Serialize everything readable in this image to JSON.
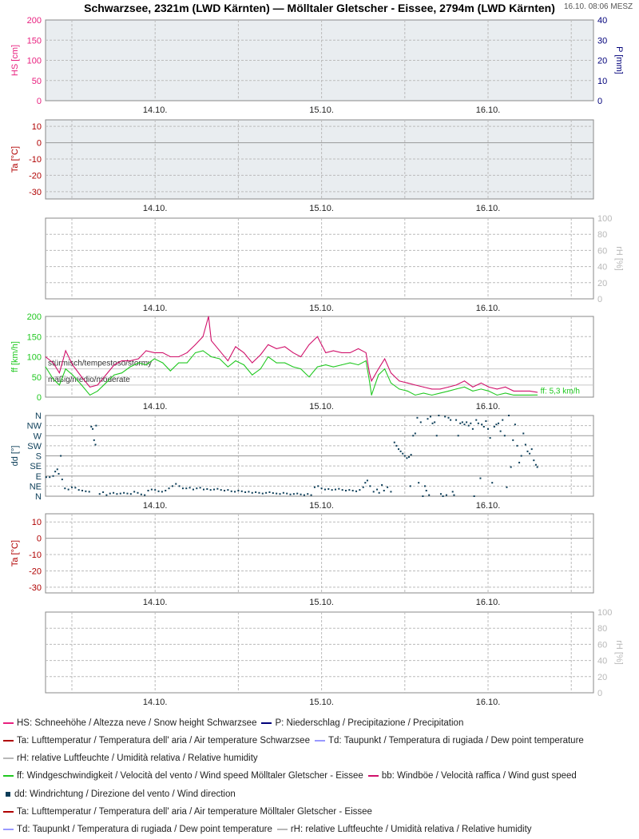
{
  "title": "Schwarzsee, 2321m (LWD Kärnten) — Mölltaler Gletscher - Eissee, 2794m (LWD Kärnten)",
  "timestamp": "16.10. 08:06 MESZ",
  "colors": {
    "hs": "#e8207f",
    "p": "#00007a",
    "ta": "#b00000",
    "rh": "#b8b8b8",
    "ff": "#20c820",
    "bb": "#d0106a",
    "dd": "#0b3d58",
    "td": "#9999ff"
  },
  "chart_data": [
    {
      "type": "line",
      "id": "hs-p",
      "xlim": [
        8.2,
        87.2
      ],
      "x_ticks": [
        24,
        48,
        72
      ],
      "x_tick_labels": [
        "14.10.",
        "15.10.",
        "16.10."
      ],
      "ylabel_left": "HS [cm]",
      "ylim_left": [
        0,
        200
      ],
      "yticks_left": [
        "0",
        "50",
        "100",
        "150",
        "200"
      ],
      "ylabel_right": "P [mm]",
      "ylim_right": [
        0,
        40
      ],
      "yticks_right": [
        "0",
        "10",
        "20",
        "30",
        "40"
      ],
      "series": []
    },
    {
      "type": "line",
      "id": "ta-1",
      "xlim": [
        8.2,
        87.2
      ],
      "x_tick_labels": [
        "14.10.",
        "15.10.",
        "16.10."
      ],
      "ylabel_left": "Ta [°C]",
      "ylim_left": [
        -34.5,
        14
      ],
      "yticks_left": [
        "10",
        "0",
        "-10",
        "-20",
        "-30"
      ],
      "series": []
    },
    {
      "type": "line",
      "id": "rh-1",
      "xlim": [
        8.2,
        87.2
      ],
      "x_tick_labels": [
        "14.10.",
        "15.10.",
        "16.10."
      ],
      "ylabel_right": "rH [%]",
      "ylim_right": [
        0,
        100
      ],
      "yticks_right": [
        "0",
        "20",
        "40",
        "60",
        "80",
        "100"
      ],
      "series": []
    },
    {
      "type": "line",
      "id": "wind",
      "xlim": [
        8.2,
        87.2
      ],
      "x_tick_labels": [
        "14.10.",
        "15.10.",
        "16.10."
      ],
      "ylabel_left": "ff [km/h]",
      "ylim_left": [
        0,
        200
      ],
      "yticks_left": [
        "0",
        "50",
        "100",
        "150",
        "200"
      ],
      "thresholds": [
        {
          "value": 70,
          "label": "stürmisch/tempestoso/stormy"
        },
        {
          "value": 30,
          "label": "mäßig/medio/moderate"
        }
      ],
      "last_value_label": "ff: 5,3 km/h",
      "x": [
        8.2,
        9.3,
        10.2,
        11.1,
        12.1,
        13.4,
        14.6,
        15.7,
        16.9,
        18.1,
        19.2,
        20.4,
        21.6,
        22.7,
        23.9,
        25.1,
        26.2,
        27.4,
        28.6,
        29.8,
        30.9,
        31.7,
        32.1,
        33.3,
        34.5,
        35.6,
        36.8,
        38.0,
        39.2,
        40.3,
        41.5,
        42.7,
        43.9,
        45.0,
        46.2,
        47.4,
        48.6,
        49.7,
        50.9,
        52.1,
        53.3,
        54.4,
        54.9,
        55.2,
        56.2,
        57.1,
        58.0,
        59.2,
        60.4,
        61.5,
        62.7,
        63.9,
        65.1,
        66.3,
        67.4,
        68.6,
        69.8,
        71.0,
        72.1,
        73.3,
        74.5,
        75.7,
        76.9,
        78.0,
        79.1
      ],
      "series": [
        {
          "name": "ff",
          "values": [
            75,
            45,
            30,
            70,
            55,
            30,
            5,
            15,
            35,
            55,
            60,
            75,
            85,
            80,
            95,
            85,
            65,
            85,
            85,
            110,
            115,
            105,
            100,
            95,
            75,
            90,
            80,
            55,
            70,
            100,
            85,
            85,
            75,
            70,
            50,
            75,
            80,
            75,
            80,
            85,
            80,
            90,
            40,
            5,
            55,
            70,
            35,
            20,
            15,
            5,
            10,
            5,
            10,
            15,
            20,
            25,
            15,
            20,
            15,
            5,
            10,
            5,
            5,
            5,
            5.3
          ]
        },
        {
          "name": "bb",
          "values": [
            100,
            85,
            60,
            115,
            80,
            50,
            25,
            30,
            55,
            80,
            90,
            90,
            95,
            115,
            110,
            110,
            100,
            100,
            110,
            130,
            150,
            200,
            140,
            115,
            90,
            125,
            110,
            85,
            105,
            130,
            120,
            125,
            110,
            100,
            130,
            150,
            110,
            115,
            110,
            110,
            120,
            110,
            60,
            40,
            70,
            95,
            60,
            40,
            35,
            30,
            25,
            20,
            20,
            25,
            30,
            40,
            25,
            35,
            25,
            20,
            25,
            15,
            15,
            15,
            12
          ]
        }
      ]
    },
    {
      "type": "scatter",
      "id": "dd",
      "xlim": [
        8.2,
        87.2
      ],
      "x_tick_labels": [
        "14.10.",
        "15.10.",
        "16.10."
      ],
      "ylabel_left": "dd [°]",
      "ylim_left": [
        0,
        360
      ],
      "yticks_left": [
        "N",
        "NE",
        "E",
        "SE",
        "S",
        "SW",
        "W",
        "NW",
        "N"
      ],
      "points": [
        [
          8.3,
          85
        ],
        [
          8.8,
          85
        ],
        [
          9.3,
          90
        ],
        [
          9.6,
          110
        ],
        [
          9.9,
          120
        ],
        [
          10.1,
          100
        ],
        [
          10.4,
          180
        ],
        [
          10.6,
          75
        ],
        [
          11.0,
          35
        ],
        [
          11.5,
          30
        ],
        [
          12.0,
          40
        ],
        [
          12.5,
          38
        ],
        [
          13.0,
          28
        ],
        [
          13.5,
          25
        ],
        [
          14.0,
          22
        ],
        [
          14.5,
          20
        ],
        [
          14.8,
          310
        ],
        [
          15.0,
          300
        ],
        [
          15.2,
          250
        ],
        [
          15.4,
          230
        ],
        [
          15.5,
          315
        ],
        [
          16.0,
          10
        ],
        [
          16.5,
          18
        ],
        [
          17,
          5
        ],
        [
          17.5,
          12
        ],
        [
          18,
          15
        ],
        [
          18.5,
          10
        ],
        [
          19,
          12
        ],
        [
          19.5,
          15
        ],
        [
          20,
          12
        ],
        [
          20.5,
          10
        ],
        [
          21,
          20
        ],
        [
          21.5,
          15
        ],
        [
          22,
          8
        ],
        [
          22.5,
          5
        ],
        [
          23,
          25
        ],
        [
          23.5,
          30
        ],
        [
          24,
          28
        ],
        [
          24.5,
          22
        ],
        [
          25,
          20
        ],
        [
          25.5,
          25
        ],
        [
          26,
          35
        ],
        [
          26.5,
          45
        ],
        [
          27,
          55
        ],
        [
          27.5,
          45
        ],
        [
          28,
          35
        ],
        [
          28.5,
          35
        ],
        [
          29,
          38
        ],
        [
          29.5,
          30
        ],
        [
          30,
          35
        ],
        [
          30.5,
          38
        ],
        [
          31,
          30
        ],
        [
          31.5,
          32
        ],
        [
          32,
          28
        ],
        [
          32.5,
          30
        ],
        [
          33,
          33
        ],
        [
          33.5,
          28
        ],
        [
          34,
          25
        ],
        [
          34.5,
          28
        ],
        [
          35,
          22
        ],
        [
          35.5,
          20
        ],
        [
          36,
          25
        ],
        [
          36.5,
          22
        ],
        [
          37,
          18
        ],
        [
          37.5,
          20
        ],
        [
          38,
          15
        ],
        [
          38.5,
          18
        ],
        [
          39,
          15
        ],
        [
          39.5,
          12
        ],
        [
          40,
          15
        ],
        [
          40.5,
          18
        ],
        [
          41,
          14
        ],
        [
          41.5,
          12
        ],
        [
          42,
          10
        ],
        [
          42.5,
          15
        ],
        [
          43,
          12
        ],
        [
          43.5,
          8
        ],
        [
          44,
          10
        ],
        [
          44.5,
          12
        ],
        [
          45,
          8
        ],
        [
          45.5,
          5
        ],
        [
          46,
          10
        ],
        [
          46.5,
          5
        ],
        [
          47,
          40
        ],
        [
          47.5,
          45
        ],
        [
          48,
          35
        ],
        [
          48.5,
          30
        ],
        [
          49,
          32
        ],
        [
          49.5,
          28
        ],
        [
          50,
          30
        ],
        [
          50.5,
          33
        ],
        [
          51,
          28
        ],
        [
          51.5,
          25
        ],
        [
          52,
          28
        ],
        [
          52.5,
          25
        ],
        [
          53,
          22
        ],
        [
          53.5,
          28
        ],
        [
          54,
          40
        ],
        [
          54.3,
          60
        ],
        [
          54.6,
          70
        ],
        [
          55,
          45
        ],
        [
          55.5,
          20
        ],
        [
          56,
          30
        ],
        [
          56.3,
          15
        ],
        [
          56.7,
          50
        ],
        [
          57,
          25
        ],
        [
          57.5,
          40
        ],
        [
          58,
          20
        ],
        [
          58.5,
          240
        ],
        [
          58.8,
          225
        ],
        [
          59.1,
          210
        ],
        [
          59.4,
          200
        ],
        [
          59.7,
          190
        ],
        [
          60,
          180
        ],
        [
          60.3,
          170
        ],
        [
          60.6,
          175
        ],
        [
          60.9,
          185
        ],
        [
          60.8,
          45
        ],
        [
          61.2,
          270
        ],
        [
          61.5,
          280
        ],
        [
          61.8,
          350
        ],
        [
          62,
          60
        ],
        [
          62.3,
          330
        ],
        [
          62.6,
          0
        ],
        [
          62.9,
          45
        ],
        [
          63.1,
          25
        ],
        [
          63.3,
          345
        ],
        [
          63.5,
          5
        ],
        [
          63.7,
          355
        ],
        [
          64,
          325
        ],
        [
          64.3,
          330
        ],
        [
          64.6,
          270
        ],
        [
          64.9,
          360
        ],
        [
          65.2,
          10
        ],
        [
          65.5,
          0
        ],
        [
          65.8,
          355
        ],
        [
          66,
          5
        ],
        [
          66.3,
          350
        ],
        [
          66.6,
          340
        ],
        [
          66.9,
          20
        ],
        [
          67.1,
          5
        ],
        [
          67.4,
          340
        ],
        [
          67.7,
          270
        ],
        [
          68,
          325
        ],
        [
          68.3,
          330
        ],
        [
          68.6,
          320
        ],
        [
          68.9,
          330
        ],
        [
          69.2,
          315
        ],
        [
          69.5,
          325
        ],
        [
          69.8,
          300
        ],
        [
          70,
          0
        ],
        [
          70.3,
          340
        ],
        [
          70.6,
          325
        ],
        [
          70.9,
          80
        ],
        [
          71.1,
          320
        ],
        [
          71.4,
          310
        ],
        [
          71.7,
          335
        ],
        [
          72,
          300
        ],
        [
          72.3,
          260
        ],
        [
          72.6,
          60
        ],
        [
          72.9,
          310
        ],
        [
          73.2,
          320
        ],
        [
          73.5,
          325
        ],
        [
          73.8,
          290
        ],
        [
          74.1,
          340
        ],
        [
          74.4,
          270
        ],
        [
          74.7,
          40
        ],
        [
          75,
          360
        ],
        [
          75.3,
          130
        ],
        [
          75.6,
          250
        ],
        [
          75.9,
          320
        ],
        [
          76.2,
          225
        ],
        [
          76.5,
          150
        ],
        [
          76.8,
          180
        ],
        [
          77.1,
          280
        ],
        [
          77.4,
          230
        ],
        [
          77.7,
          200
        ],
        [
          78,
          190
        ],
        [
          78.3,
          210
        ],
        [
          78.6,
          160
        ],
        [
          78.9,
          140
        ],
        [
          79.1,
          130
        ]
      ]
    },
    {
      "type": "line",
      "id": "ta-2",
      "xlim": [
        8.2,
        87.2
      ],
      "x_tick_labels": [
        "14.10.",
        "15.10.",
        "16.10."
      ],
      "ylabel_left": "Ta [°C]",
      "ylim_left": [
        -33.5,
        15
      ],
      "yticks_left": [
        "10",
        "0",
        "-10",
        "-20",
        "-30"
      ],
      "series": []
    },
    {
      "type": "line",
      "id": "rh-2",
      "xlim": [
        8.2,
        87.2
      ],
      "x_tick_labels": [
        "14.10.",
        "15.10.",
        "16.10."
      ],
      "ylabel_right": "rH [%]",
      "ylim_right": [
        0,
        100
      ],
      "yticks_right": [
        "0",
        "20",
        "40",
        "60",
        "80",
        "100"
      ],
      "series": []
    }
  ],
  "legend": [
    [
      {
        "key": "hs",
        "text": "HS: Schneehöhe / Altezza neve / Snow height  Schwarzsee"
      },
      {
        "key": "p",
        "text": "P: Niederschlag / Precipitazione / Precipitation"
      }
    ],
    [
      {
        "key": "ta",
        "text": "Ta: Lufttemperatur / Temperatura dell' aria / Air temperature  Schwarzsee"
      },
      {
        "key": "td",
        "text": "Td: Taupunkt / Temperatura di rugiada / Dew point temperature"
      }
    ],
    [
      {
        "key": "rh",
        "text": "rH: relative Luftfeuchte / Umidità relativa / Relative humidity"
      }
    ],
    [
      {
        "key": "ff",
        "text": "ff: Windgeschwindigkeit / Velocità del vento / Wind speed  Mölltaler Gletscher - Eissee"
      },
      {
        "key": "bb",
        "text": "bb: Windböe / Velocità raffica / Wind gust speed"
      }
    ],
    [
      {
        "key": "dd",
        "text": "dd: Windrichtung / Direzione del vento / Wind direction"
      }
    ],
    [
      {
        "key": "ta",
        "text": "Ta: Lufttemperatur / Temperatura dell' aria / Air temperature  Mölltaler Gletscher - Eissee"
      }
    ],
    [
      {
        "key": "td",
        "text": "Td: Taupunkt / Temperatura di rugiada / Dew point temperature"
      },
      {
        "key": "rh",
        "text": "rH: relative Luftfeuchte / Umidità relativa / Relative humidity"
      }
    ]
  ]
}
